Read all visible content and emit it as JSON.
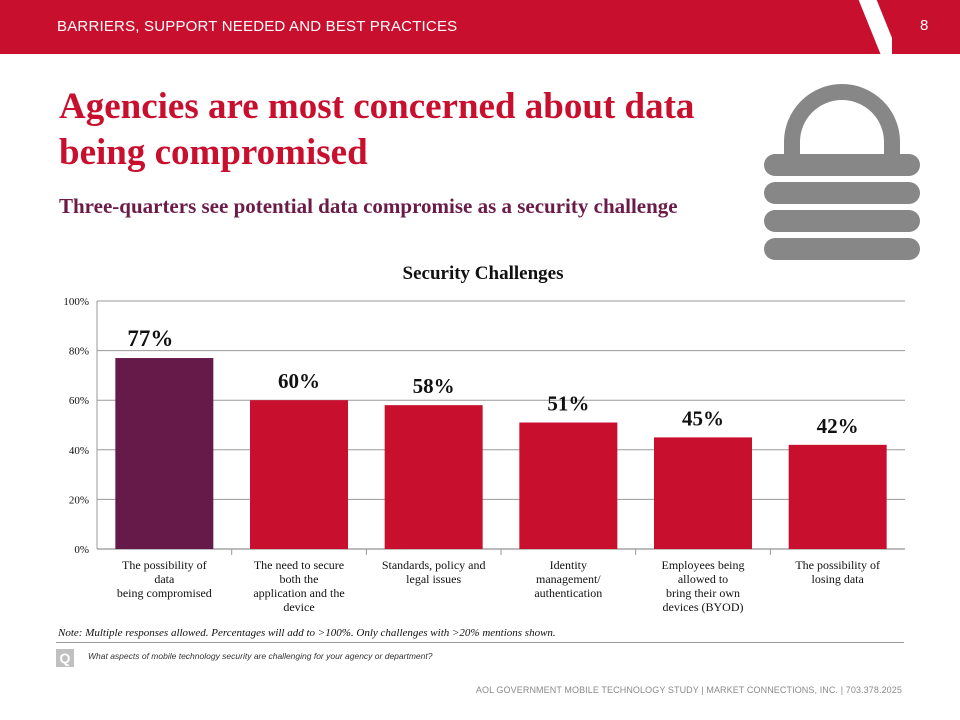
{
  "header": {
    "section": "BARRIERS, SUPPORT NEEDED AND BEST PRACTICES",
    "page_number": "8",
    "color": "#c8102e"
  },
  "slide": {
    "title": "Agencies are most concerned about data being compromised",
    "subtitle": "Three-quarters see potential data compromise as a security challenge",
    "icon": "lock-icon"
  },
  "chart_data": {
    "type": "bar",
    "title": "Security Challenges",
    "categories": [
      "The possibility of data being compromised",
      "The need to secure both the application and the device",
      "Standards, policy and legal issues",
      "Identity management/ authentication",
      "Employees being allowed to bring their own devices (BYOD)",
      "The possibility of losing data"
    ],
    "category_lines": [
      [
        "The possibility of",
        "data",
        "being compromised"
      ],
      [
        "The need to secure",
        "both the",
        "application and the",
        "device"
      ],
      [
        "Standards, policy and",
        "legal issues"
      ],
      [
        "Identity",
        "management/",
        "authentication"
      ],
      [
        "Employees being",
        "allowed to",
        "bring their own",
        "devices (BYOD)"
      ],
      [
        "The possibility of",
        "losing data"
      ]
    ],
    "values": [
      77,
      60,
      58,
      51,
      45,
      42
    ],
    "data_labels": [
      "77%",
      "60%",
      "58%",
      "51%",
      "45%",
      "42%"
    ],
    "bar_colors": [
      "#661a4a",
      "#c8102e",
      "#c8102e",
      "#c8102e",
      "#c8102e",
      "#c8102e"
    ],
    "ylim": [
      0,
      100
    ],
    "yticks": [
      "0%",
      "20%",
      "40%",
      "60%",
      "80%",
      "100%"
    ],
    "grid": true,
    "xlabel": "",
    "ylabel": ""
  },
  "footnotes": {
    "note": "Note: Multiple responses allowed.  Percentages will add to >100%.  Only challenges with >20% mentions shown.",
    "q_badge": "Q",
    "question": "What aspects of mobile technology security are challenging for your agency or department?",
    "footer": "AOL GOVERNMENT MOBILE TECHNOLOGY STUDY  |  MARKET CONNECTIONS, INC.  |  703.378.2025"
  }
}
